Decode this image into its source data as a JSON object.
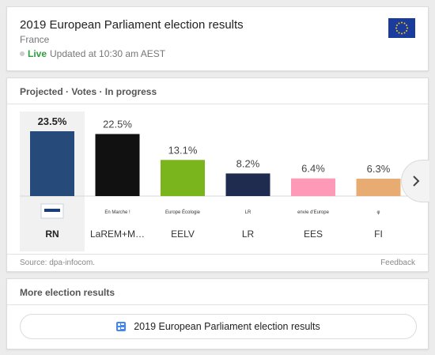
{
  "header": {
    "title": "2019 European Parliament election results",
    "subtitle": "France",
    "live_label": "Live",
    "updated": "Updated at 10:30 am AEST"
  },
  "chart_section": {
    "heading": "Projected · Votes · In progress",
    "source": "Source: dpa-infocom.",
    "feedback": "Feedback"
  },
  "chart_data": {
    "type": "bar",
    "categories": [
      "RN",
      "LaREM+M…",
      "EELV",
      "LR",
      "EES",
      "FI"
    ],
    "values": [
      23.5,
      22.5,
      13.1,
      8.2,
      6.4,
      6.3
    ],
    "labels": [
      "23.5%",
      "22.5%",
      "13.1%",
      "8.2%",
      "6.4%",
      "6.3%"
    ],
    "colors": [
      "#264a7a",
      "#111111",
      "#7ab51d",
      "#1f2c4f",
      "#ff99b8",
      "#e8ac73"
    ],
    "logos": [
      "",
      "En Marche !",
      "Europe Écologie",
      "LR",
      "envie d'Europe",
      "φ"
    ],
    "selected_index": 0,
    "ylim": [
      0,
      23.5
    ]
  },
  "more": {
    "heading": "More election results",
    "button_label": "2019 European Parliament election results"
  }
}
